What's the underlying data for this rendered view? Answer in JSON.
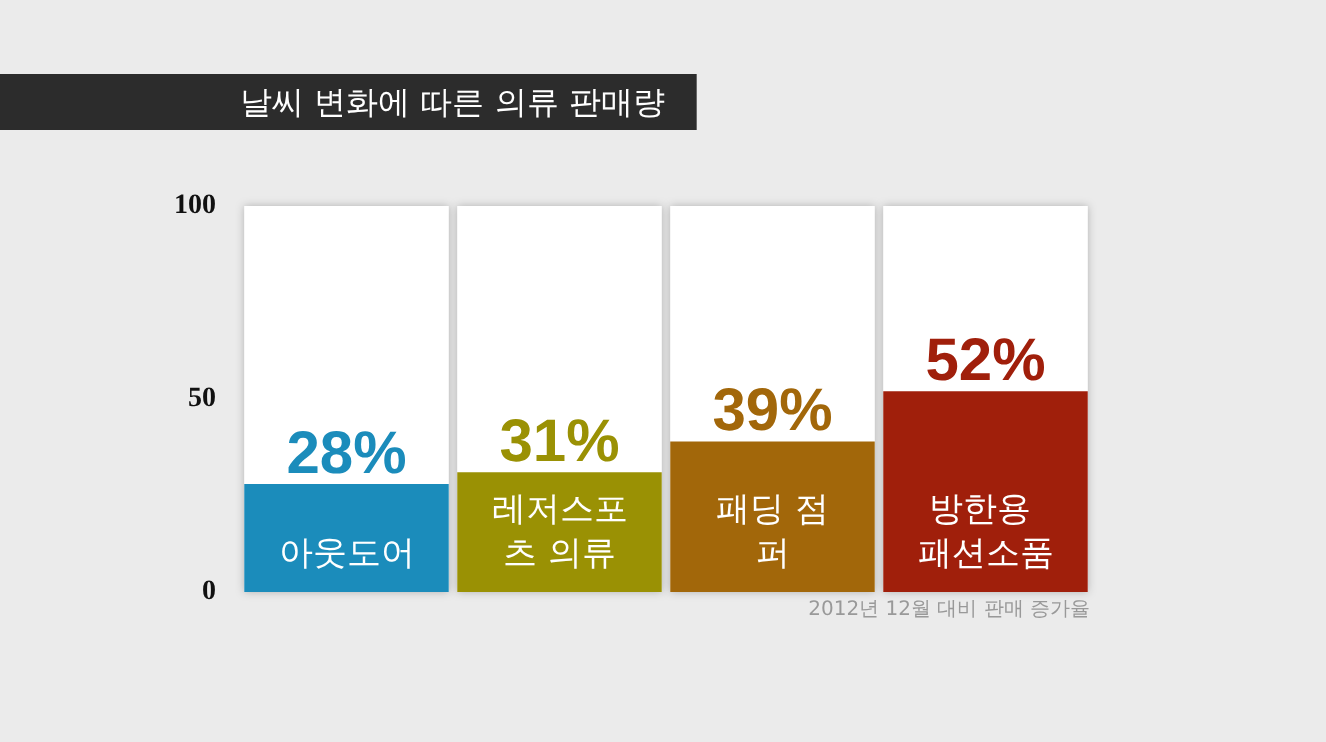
{
  "chart_data": {
    "type": "bar",
    "title": "날씨 변화에 따른 의류 판매량",
    "categories": [
      "아웃도어",
      "레저스포츠 의류",
      "패딩 점퍼",
      "방한용 패션소품"
    ],
    "values": [
      28,
      31,
      39,
      52
    ],
    "colors": [
      "#1b8cbb",
      "#9a9104",
      "#a2670a",
      "#a01f0b"
    ],
    "value_labels": [
      "28%",
      "31%",
      "39%",
      "52%"
    ],
    "ylim": [
      0,
      100
    ],
    "yticks": [
      0,
      50,
      100
    ],
    "grid": false,
    "annotations": [
      "2012년 12월 대비 판매 증가율"
    ]
  }
}
